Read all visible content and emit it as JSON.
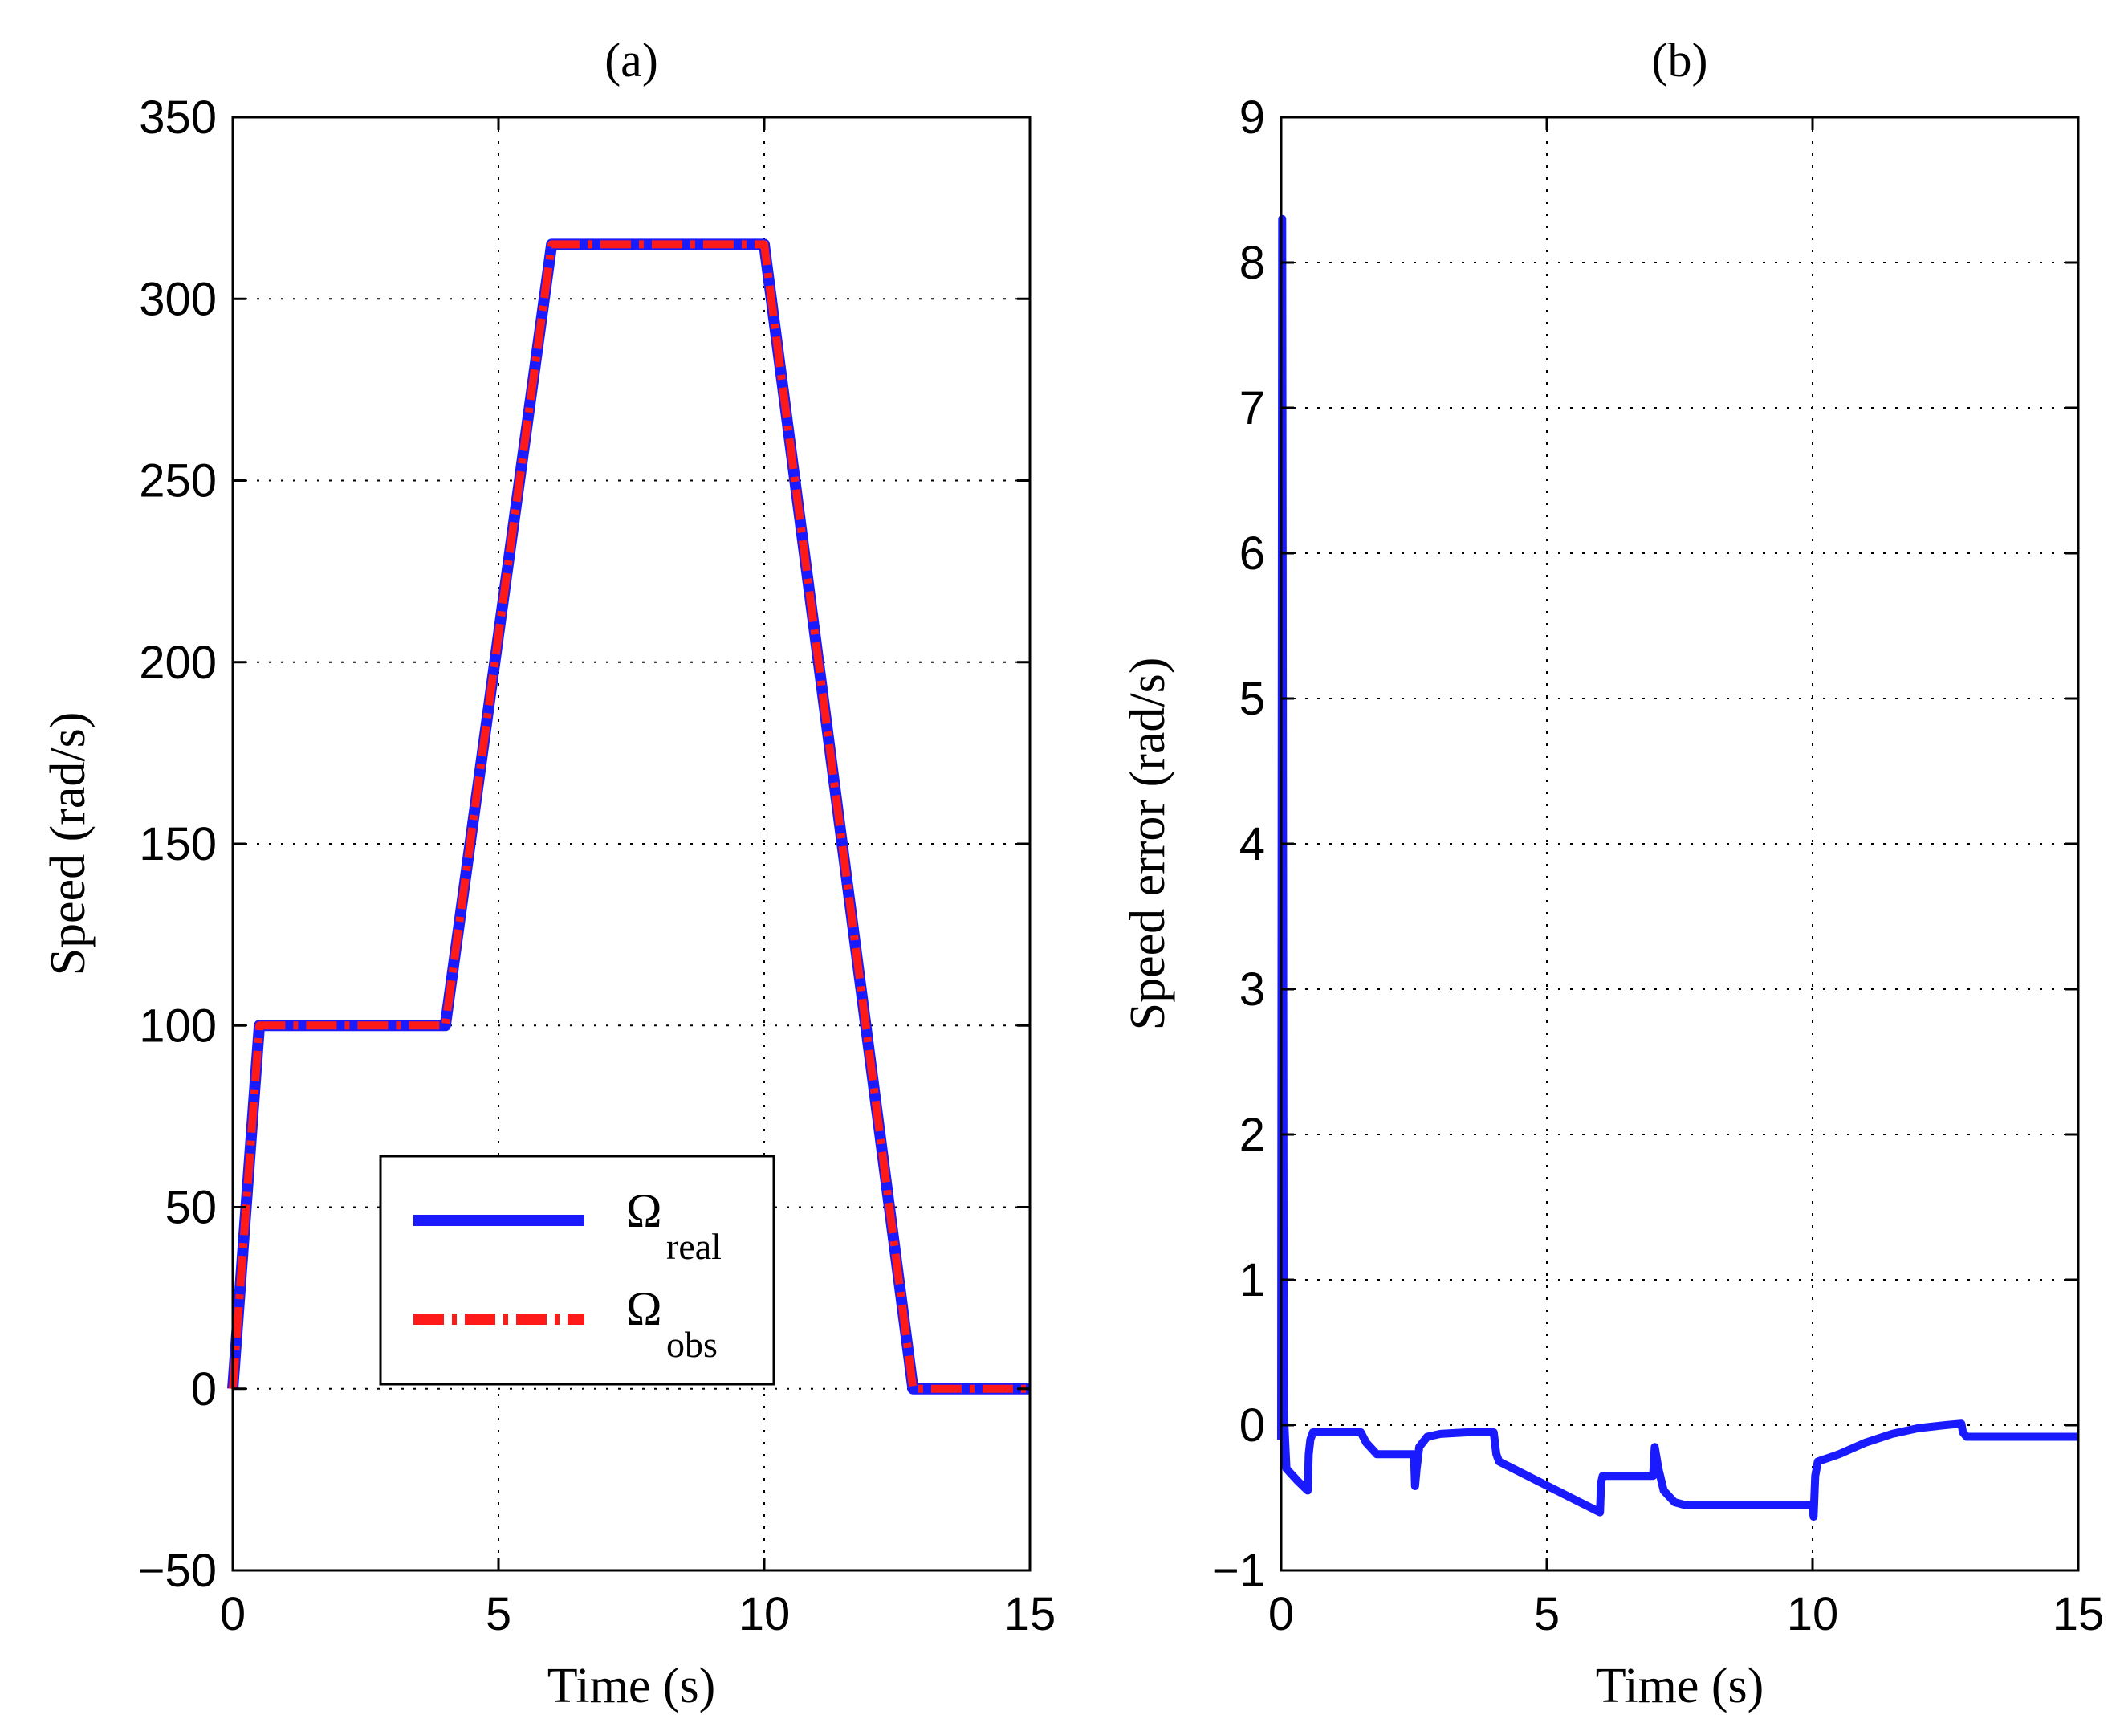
{
  "chart_data": [
    {
      "type": "line",
      "title": "(a)",
      "xlabel": "Time (s)",
      "ylabel": "Speed  (rad/s)",
      "xlim": [
        0,
        15
      ],
      "ylim": [
        -50,
        350
      ],
      "xticks": [
        0,
        5,
        10,
        15
      ],
      "yticks": [
        -50,
        0,
        50,
        100,
        150,
        200,
        250,
        300,
        350
      ],
      "xtick_labels": [
        "0",
        "5",
        "10",
        "15"
      ],
      "ytick_labels": [
        "−50",
        "0",
        "50",
        "100",
        "150",
        "200",
        "250",
        "300",
        "350"
      ],
      "grid": true,
      "legend_position": "lower-center",
      "series": [
        {
          "name": "real",
          "legend_symbol": "Ω",
          "legend_subscript": "real",
          "color": "#1a1aff",
          "style": "solid",
          "x": [
            0,
            0.5,
            4.0,
            6.0,
            10.0,
            12.8,
            15.0
          ],
          "y": [
            0,
            100,
            100,
            315,
            315,
            0,
            0
          ]
        },
        {
          "name": "obs",
          "legend_symbol": "Ω",
          "legend_subscript": "obs",
          "color": "#ff1a1a",
          "style": "dashdot",
          "x": [
            0,
            0.5,
            4.0,
            6.0,
            10.0,
            12.8,
            15.0
          ],
          "y": [
            0,
            100,
            100,
            315,
            315,
            0,
            0
          ]
        }
      ]
    },
    {
      "type": "line",
      "title": "(b)",
      "xlabel": "Time (s)",
      "ylabel": "Speed error  (rad/s)",
      "xlim": [
        0,
        15
      ],
      "ylim": [
        -1,
        9
      ],
      "xticks": [
        0,
        5,
        10,
        15
      ],
      "yticks": [
        -1,
        0,
        1,
        2,
        3,
        4,
        5,
        6,
        7,
        8,
        9
      ],
      "xtick_labels": [
        "0",
        "5",
        "10",
        "15"
      ],
      "ytick_labels": [
        "−1",
        "0",
        "1",
        "2",
        "3",
        "4",
        "5",
        "6",
        "7",
        "8",
        "9"
      ],
      "grid": true,
      "series": [
        {
          "name": "speed error",
          "color": "#1a1aff",
          "style": "solid",
          "x": [
            0,
            0.02,
            0.05,
            0.1,
            0.3,
            0.5,
            0.52,
            0.55,
            0.6,
            1.5,
            1.6,
            1.8,
            2.5,
            2.52,
            2.55,
            2.6,
            2.75,
            3.0,
            3.5,
            4.0,
            4.05,
            4.1,
            6.0,
            6.02,
            6.05,
            6.1,
            7.0,
            7.03,
            7.1,
            7.2,
            7.4,
            7.6,
            10.0,
            10.02,
            10.05,
            10.1,
            10.5,
            11.0,
            11.5,
            12.0,
            12.5,
            12.8,
            12.83,
            12.9,
            15.0
          ],
          "y": [
            -0.1,
            8.3,
            0.1,
            -0.3,
            -0.38,
            -0.45,
            -0.2,
            -0.1,
            -0.05,
            -0.05,
            -0.12,
            -0.2,
            -0.2,
            -0.42,
            -0.3,
            -0.15,
            -0.08,
            -0.06,
            -0.05,
            -0.05,
            -0.2,
            -0.25,
            -0.6,
            -0.4,
            -0.35,
            -0.35,
            -0.35,
            -0.15,
            -0.3,
            -0.45,
            -0.53,
            -0.55,
            -0.55,
            -0.63,
            -0.35,
            -0.25,
            -0.2,
            -0.12,
            -0.06,
            -0.02,
            0.0,
            0.01,
            -0.05,
            -0.08,
            -0.08
          ]
        }
      ]
    }
  ]
}
